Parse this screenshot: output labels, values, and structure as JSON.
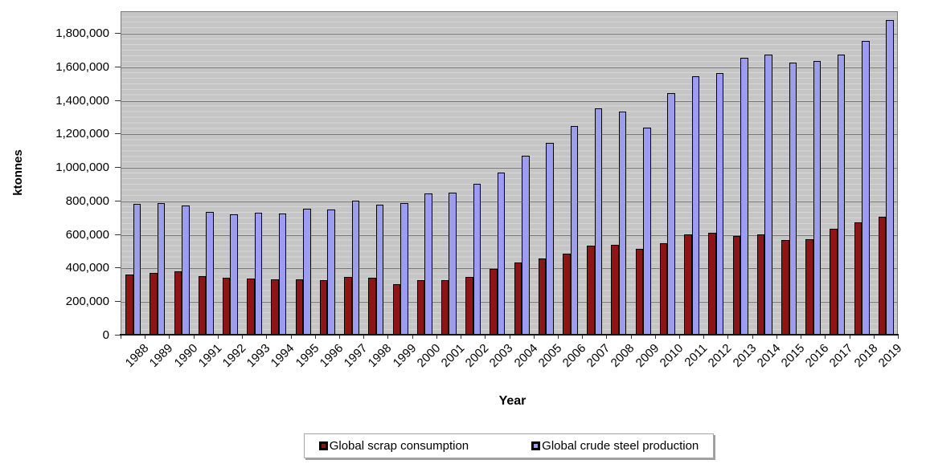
{
  "chart_data": {
    "type": "bar",
    "title": "",
    "xlabel": "Year",
    "ylabel": "ktonnes",
    "categories": [
      "1988",
      "1989",
      "1990",
      "1991",
      "1992",
      "1993",
      "1994",
      "1995",
      "1996",
      "1997",
      "1998",
      "1999",
      "2000",
      "2001",
      "2002",
      "2003",
      "2004",
      "2005",
      "2006",
      "2007",
      "2008",
      "2009",
      "2010",
      "2011",
      "2012",
      "2013",
      "2014",
      "2015",
      "2016",
      "2017",
      "2018",
      "2019"
    ],
    "series": [
      {
        "name": "Global scrap consumption",
        "color": "#8e1515",
        "values": [
          360000,
          370000,
          378000,
          352000,
          338000,
          336000,
          331000,
          330000,
          325000,
          344000,
          341000,
          304000,
          324000,
          327000,
          347000,
          394000,
          429000,
          457000,
          486000,
          533000,
          536000,
          512000,
          547000,
          597000,
          606000,
          589000,
          601000,
          567000,
          570000,
          633000,
          672000,
          705000
        ]
      },
      {
        "name": "Global crude steel production",
        "color": "#9c9cf0",
        "values": [
          780000,
          787000,
          770000,
          733000,
          718000,
          726000,
          722000,
          750000,
          748000,
          799000,
          776000,
          787000,
          843000,
          848000,
          901000,
          967000,
          1068000,
          1144000,
          1247000,
          1349000,
          1331000,
          1235000,
          1441000,
          1544000,
          1563000,
          1653000,
          1674000,
          1625000,
          1633000,
          1671000,
          1751000,
          1878000
        ]
      }
    ],
    "ylim": [
      0,
      1935000
    ],
    "ytick_step": 200000,
    "ytick_labels": [
      "0",
      "200,000",
      "400,000",
      "600,000",
      "800,000",
      "1,000,000",
      "1,200,000",
      "1,400,000",
      "1,600,000",
      "1,800,000"
    ],
    "grid": "horizontal-major",
    "legend_position": "bottom",
    "plot_background": "#c5c5c5",
    "bar_border_color": "#000000"
  }
}
